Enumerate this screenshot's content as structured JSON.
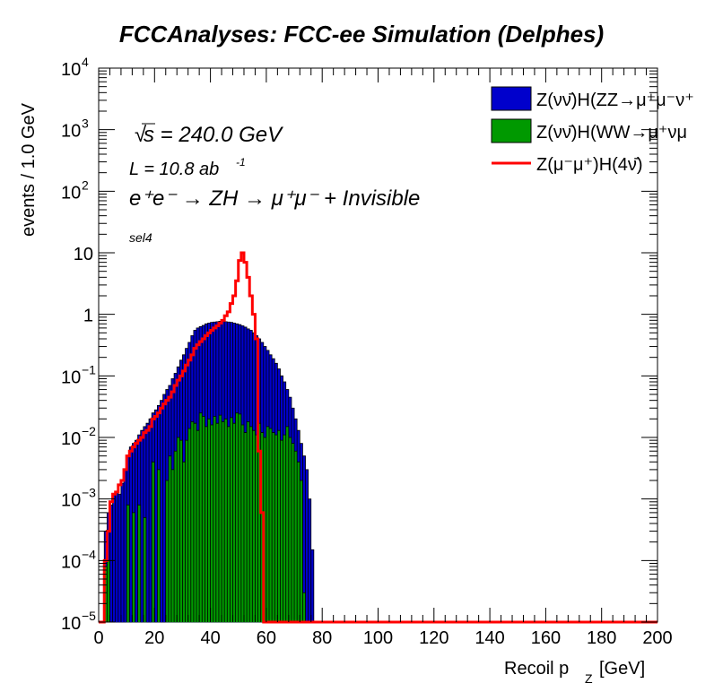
{
  "chart_data": {
    "type": "histogram",
    "title": "FCCAnalyses: FCC-ee Simulation (Delphes)",
    "xlabel": "Recoil p",
    "xlabel_sub": "Z",
    "xlabel_unit": "[GeV]",
    "ylabel": "events / 1.0 GeV",
    "xlim": [
      0,
      200
    ],
    "ylim": [
      1e-05,
      10000
    ],
    "y_scale": "log",
    "bin_width": 1.0,
    "x_ticks": [
      "0",
      "20",
      "40",
      "60",
      "80",
      "100",
      "120",
      "140",
      "160",
      "180",
      "200"
    ],
    "y_ticks": [
      {
        "base": "10",
        "exp": "4"
      },
      {
        "base": "10",
        "exp": "3"
      },
      {
        "base": "10",
        "exp": "2"
      },
      {
        "base": "10",
        "exp": ""
      },
      {
        "base": "1",
        "exp": ""
      },
      {
        "base": "10",
        "exp": "−1"
      },
      {
        "base": "10",
        "exp": "−2"
      },
      {
        "base": "10",
        "exp": "−3"
      },
      {
        "base": "10",
        "exp": "−4"
      },
      {
        "base": "10",
        "exp": "−5"
      }
    ],
    "annotations": {
      "sqrt_s": "s = 240.0 GeV",
      "lumi": "L = 10.8 ab",
      "lumi_exp": "-1",
      "process": "e⁺e⁻ → ZH → μ⁺μ⁻ + Invisible",
      "selection": "sel4"
    },
    "legend_position": "top-right",
    "series": [
      {
        "name": "Z(νν̄)H(ZZ→μ⁺μ⁻ν⁺",
        "color": "#0000cc",
        "style": "filled",
        "bins": [
          [
            2,
            0.0003
          ],
          [
            3,
            0.0006
          ],
          [
            4,
            0.0008
          ],
          [
            5,
            0.0012
          ],
          [
            6,
            0.0013
          ],
          [
            7,
            0.0012
          ],
          [
            8,
            0.0018
          ],
          [
            9,
            0.003
          ],
          [
            10,
            0.005
          ],
          [
            11,
            0.007
          ],
          [
            12,
            0.008
          ],
          [
            13,
            0.009
          ],
          [
            14,
            0.011
          ],
          [
            15,
            0.013
          ],
          [
            16,
            0.015
          ],
          [
            17,
            0.017
          ],
          [
            18,
            0.02
          ],
          [
            19,
            0.025
          ],
          [
            20,
            0.028
          ],
          [
            21,
            0.033
          ],
          [
            22,
            0.04
          ],
          [
            23,
            0.05
          ],
          [
            24,
            0.06
          ],
          [
            25,
            0.07
          ],
          [
            26,
            0.09
          ],
          [
            27,
            0.11
          ],
          [
            28,
            0.14
          ],
          [
            29,
            0.18
          ],
          [
            30,
            0.22
          ],
          [
            31,
            0.28
          ],
          [
            32,
            0.35
          ],
          [
            33,
            0.45
          ],
          [
            34,
            0.55
          ],
          [
            35,
            0.6
          ],
          [
            36,
            0.63
          ],
          [
            37,
            0.66
          ],
          [
            38,
            0.7
          ],
          [
            39,
            0.72
          ],
          [
            40,
            0.74
          ],
          [
            41,
            0.75
          ],
          [
            42,
            0.76
          ],
          [
            43,
            0.77
          ],
          [
            44,
            0.77
          ],
          [
            45,
            0.76
          ],
          [
            46,
            0.75
          ],
          [
            47,
            0.74
          ],
          [
            48,
            0.72
          ],
          [
            49,
            0.7
          ],
          [
            50,
            0.68
          ],
          [
            51,
            0.65
          ],
          [
            52,
            0.62
          ],
          [
            53,
            0.58
          ],
          [
            54,
            0.55
          ],
          [
            55,
            0.5
          ],
          [
            56,
            0.45
          ],
          [
            57,
            0.4
          ],
          [
            58,
            0.35
          ],
          [
            59,
            0.3
          ],
          [
            60,
            0.26
          ],
          [
            61,
            0.22
          ],
          [
            62,
            0.19
          ],
          [
            63,
            0.16
          ],
          [
            64,
            0.13
          ],
          [
            65,
            0.1
          ],
          [
            66,
            0.08
          ],
          [
            67,
            0.06
          ],
          [
            68,
            0.045
          ],
          [
            69,
            0.03
          ],
          [
            70,
            0.02
          ],
          [
            71,
            0.013
          ],
          [
            72,
            0.008
          ],
          [
            73,
            0.005
          ],
          [
            74,
            0.003
          ],
          [
            75,
            0.001
          ],
          [
            76,
            0.00015
          ]
        ]
      },
      {
        "name": "Z(νν̄)H(WW→μ⁺νμ",
        "color": "#009900",
        "style": "filled",
        "bins": [
          [
            2,
            8e-05
          ],
          [
            3,
            0.0001
          ],
          [
            10,
            0.0008
          ],
          [
            12,
            0.0006
          ],
          [
            14,
            0.0008
          ],
          [
            16,
            0.0005
          ],
          [
            19,
            0.004
          ],
          [
            21,
            0.003
          ],
          [
            24,
            0.002
          ],
          [
            25,
            0.005
          ],
          [
            26,
            0.003
          ],
          [
            27,
            0.006
          ],
          [
            28,
            0.01
          ],
          [
            29,
            0.009
          ],
          [
            30,
            0.004
          ],
          [
            31,
            0.009
          ],
          [
            32,
            0.014
          ],
          [
            33,
            0.018
          ],
          [
            34,
            0.017
          ],
          [
            35,
            0.013
          ],
          [
            36,
            0.025
          ],
          [
            37,
            0.022
          ],
          [
            38,
            0.015
          ],
          [
            39,
            0.02
          ],
          [
            40,
            0.016
          ],
          [
            41,
            0.022
          ],
          [
            42,
            0.017
          ],
          [
            43,
            0.023
          ],
          [
            44,
            0.018
          ],
          [
            45,
            0.02
          ],
          [
            46,
            0.015
          ],
          [
            47,
            0.021
          ],
          [
            48,
            0.017
          ],
          [
            49,
            0.025
          ],
          [
            50,
            0.024
          ],
          [
            51,
            0.016
          ],
          [
            52,
            0.012
          ],
          [
            53,
            0.018
          ],
          [
            54,
            0.015
          ],
          [
            55,
            0.013
          ],
          [
            56,
            0.011
          ],
          [
            57,
            0.017
          ],
          [
            58,
            0.012
          ],
          [
            59,
            0.01
          ],
          [
            60,
            0.015
          ],
          [
            61,
            0.014
          ],
          [
            62,
            0.012
          ],
          [
            63,
            0.011
          ],
          [
            64,
            0.013
          ],
          [
            65,
            0.009
          ],
          [
            66,
            0.011
          ],
          [
            67,
            0.015
          ],
          [
            68,
            0.01
          ],
          [
            69,
            0.008
          ],
          [
            70,
            0.006
          ],
          [
            71,
            0.004
          ],
          [
            72,
            0.002
          ],
          [
            73,
            3e-05
          ],
          [
            74,
            1e-05
          ]
        ]
      },
      {
        "name": "Z(μ⁻μ⁺)H(4ν̄)",
        "color": "#ff0000",
        "style": "line",
        "bins": [
          [
            0,
            1e-05
          ],
          [
            1,
            1e-05
          ],
          [
            2,
            0.0001
          ],
          [
            3,
            0.0003
          ],
          [
            4,
            0.0009
          ],
          [
            5,
            0.0012
          ],
          [
            6,
            0.0013
          ],
          [
            7,
            0.0017
          ],
          [
            8,
            0.002
          ],
          [
            9,
            0.003
          ],
          [
            10,
            0.005
          ],
          [
            11,
            0.006
          ],
          [
            12,
            0.007
          ],
          [
            13,
            0.008
          ],
          [
            14,
            0.009
          ],
          [
            15,
            0.01
          ],
          [
            16,
            0.012
          ],
          [
            17,
            0.013
          ],
          [
            18,
            0.015
          ],
          [
            19,
            0.02
          ],
          [
            20,
            0.022
          ],
          [
            21,
            0.025
          ],
          [
            22,
            0.03
          ],
          [
            23,
            0.035
          ],
          [
            24,
            0.04
          ],
          [
            25,
            0.045
          ],
          [
            26,
            0.055
          ],
          [
            27,
            0.07
          ],
          [
            28,
            0.085
          ],
          [
            29,
            0.1
          ],
          [
            30,
            0.12
          ],
          [
            31,
            0.15
          ],
          [
            32,
            0.18
          ],
          [
            33,
            0.22
          ],
          [
            34,
            0.28
          ],
          [
            35,
            0.32
          ],
          [
            36,
            0.36
          ],
          [
            37,
            0.4
          ],
          [
            38,
            0.45
          ],
          [
            39,
            0.5
          ],
          [
            40,
            0.55
          ],
          [
            41,
            0.6
          ],
          [
            42,
            0.65
          ],
          [
            43,
            0.72
          ],
          [
            44,
            0.8
          ],
          [
            45,
            0.95
          ],
          [
            46,
            1.1
          ],
          [
            47,
            1.5
          ],
          [
            48,
            2.0
          ],
          [
            49,
            3.5
          ],
          [
            50,
            7.5
          ],
          [
            51,
            10.0
          ],
          [
            52,
            7.0
          ],
          [
            53,
            4.0
          ],
          [
            54,
            2.0
          ],
          [
            55,
            1.0
          ],
          [
            56,
            0.4
          ],
          [
            57,
            0.006
          ],
          [
            58,
            0.0006
          ],
          [
            59,
            1e-05
          ],
          [
            60,
            1e-05
          ],
          [
            200,
            1e-05
          ]
        ]
      }
    ]
  }
}
